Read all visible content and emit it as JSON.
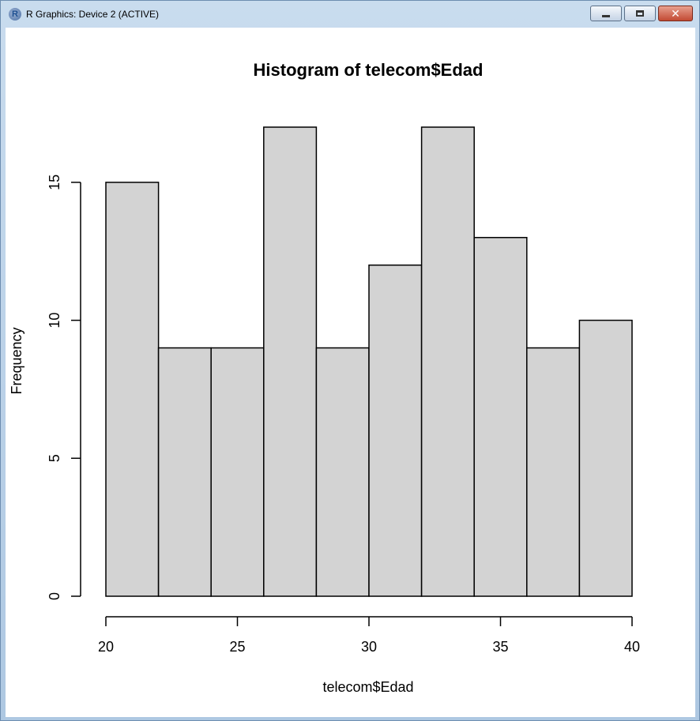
{
  "window": {
    "title": "R Graphics: Device 2 (ACTIVE)",
    "app_icon_letter": "R"
  },
  "chart_data": {
    "type": "bar",
    "title": "Histogram of telecom$Edad",
    "xlabel": "telecom$Edad",
    "ylabel": "Frequency",
    "bin_edges": [
      20,
      22,
      24,
      26,
      28,
      30,
      32,
      34,
      36,
      38,
      40
    ],
    "values": [
      15,
      9,
      9,
      17,
      9,
      12,
      17,
      13,
      9,
      10
    ],
    "xlim": [
      20,
      40
    ],
    "ylim": [
      0,
      17
    ],
    "x_ticks": [
      20,
      25,
      30,
      35,
      40
    ],
    "y_ticks": [
      0,
      5,
      10,
      15
    ],
    "bar_fill": "#d3d3d3",
    "bar_stroke": "#000000",
    "grid": false
  }
}
